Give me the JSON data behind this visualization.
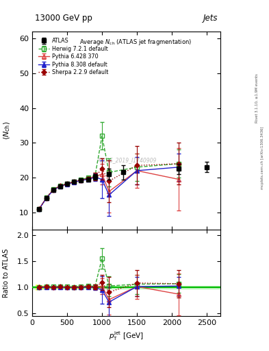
{
  "title_top": "13000 GeV pp",
  "title_right": "Jets",
  "watermark": "ATLAS_2019_I1740909",
  "right_label": "Rivet 3.1.10, ≥1.9M events",
  "right_label2": "mcplots.cern.ch [arXiv:1306.3436]",
  "atlas_x": [
    100,
    200,
    300,
    400,
    500,
    600,
    700,
    800,
    900,
    1100,
    1300,
    2100,
    2500
  ],
  "atlas_y": [
    11.0,
    14.0,
    16.5,
    17.5,
    18.2,
    18.8,
    19.2,
    19.5,
    20.2,
    21.0,
    21.5,
    22.5,
    23.0
  ],
  "atlas_yerr": [
    0.4,
    0.3,
    0.3,
    0.3,
    0.3,
    0.3,
    0.4,
    0.5,
    0.8,
    1.5,
    2.0,
    1.5,
    1.5
  ],
  "herwig_x": [
    100,
    200,
    300,
    400,
    500,
    600,
    700,
    800,
    900,
    1000,
    1100,
    1500,
    2100
  ],
  "herwig_y": [
    11.0,
    14.2,
    16.6,
    17.7,
    18.3,
    18.9,
    19.4,
    20.0,
    20.5,
    32.0,
    21.5,
    23.0,
    24.0
  ],
  "herwig_yerr": [
    0.2,
    0.2,
    0.2,
    0.2,
    0.2,
    0.2,
    0.3,
    0.4,
    0.6,
    4.0,
    4.0,
    4.0,
    4.0
  ],
  "pythia6_x": [
    100,
    200,
    300,
    400,
    500,
    600,
    700,
    800,
    900,
    1000,
    1100,
    1500,
    2100
  ],
  "pythia6_y": [
    11.1,
    14.1,
    16.5,
    17.6,
    18.2,
    18.8,
    19.3,
    19.7,
    20.3,
    21.0,
    16.0,
    22.0,
    19.5
  ],
  "pythia6_yerr": [
    0.2,
    0.2,
    0.2,
    0.2,
    0.2,
    0.2,
    0.3,
    0.5,
    1.0,
    3.0,
    6.0,
    5.0,
    9.0
  ],
  "pythia8_x": [
    100,
    200,
    300,
    400,
    500,
    600,
    700,
    800,
    900,
    1000,
    1100,
    1500,
    2100
  ],
  "pythia8_y": [
    11.0,
    14.0,
    16.4,
    17.5,
    18.1,
    18.7,
    19.2,
    19.5,
    20.1,
    19.5,
    15.0,
    22.0,
    23.0
  ],
  "pythia8_yerr": [
    0.2,
    0.2,
    0.2,
    0.2,
    0.2,
    0.2,
    0.3,
    0.5,
    1.0,
    5.5,
    6.0,
    4.0,
    4.0
  ],
  "sherpa_x": [
    100,
    200,
    300,
    400,
    500,
    600,
    700,
    800,
    900,
    1000,
    1100,
    1500,
    2100
  ],
  "sherpa_y": [
    11.0,
    14.1,
    16.5,
    17.6,
    18.2,
    18.8,
    19.3,
    19.7,
    20.3,
    22.5,
    19.0,
    23.5,
    24.0
  ],
  "sherpa_yerr": [
    0.2,
    0.2,
    0.2,
    0.2,
    0.2,
    0.2,
    0.3,
    0.5,
    1.0,
    3.0,
    6.0,
    5.5,
    6.0
  ],
  "xlim": [
    0,
    2700
  ],
  "ylim_main": [
    5,
    62
  ],
  "ylim_ratio": [
    0.45,
    2.1
  ],
  "color_atlas": "#000000",
  "color_herwig": "#33aa33",
  "color_pythia6": "#dd4444",
  "color_pythia8": "#2222cc",
  "color_sherpa": "#990000",
  "bg_color": "#ffffff"
}
